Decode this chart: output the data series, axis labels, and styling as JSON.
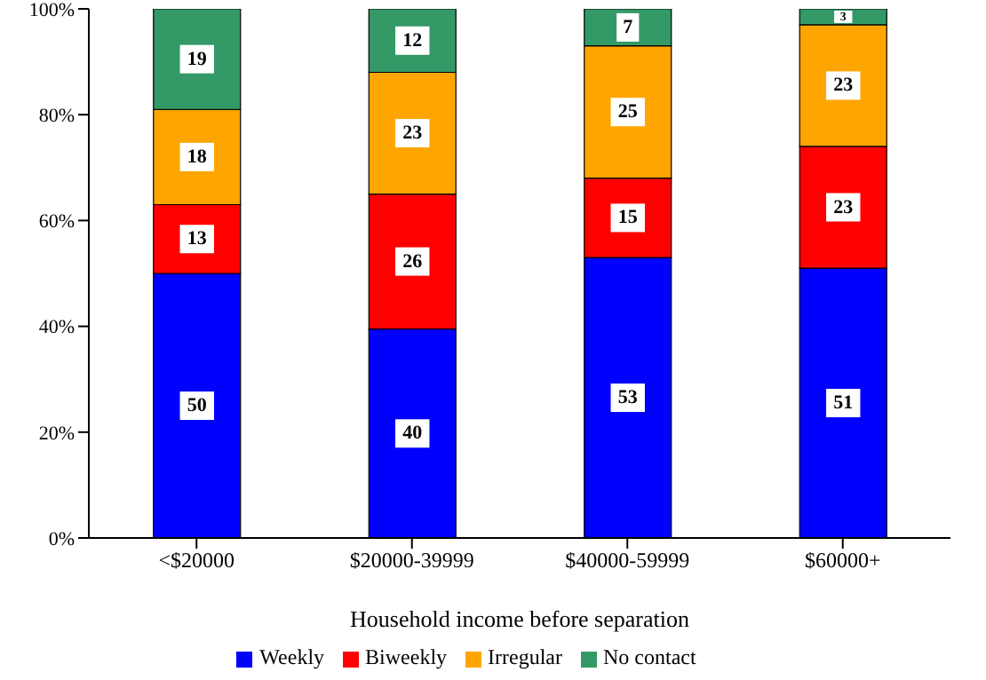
{
  "chart_data": {
    "type": "bar",
    "stacked": true,
    "xlabel": "Household income before separation",
    "categories": [
      "<$20000",
      "$20000-39999",
      "$40000-59999",
      "$60000+"
    ],
    "series": [
      {
        "name": "Weekly",
        "color": "#0000ff",
        "values": [
          50,
          39.5,
          53,
          51
        ],
        "value_labels": [
          "50",
          "40",
          "53",
          "51"
        ]
      },
      {
        "name": "Biweekly",
        "color": "#ff0000",
        "values": [
          13,
          25.5,
          15,
          23
        ],
        "value_labels": [
          "13",
          "26",
          "15",
          "23"
        ]
      },
      {
        "name": "Irregular",
        "color": "#ffa500",
        "values": [
          18,
          23,
          25,
          23
        ],
        "value_labels": [
          "18",
          "23",
          "25",
          "23"
        ]
      },
      {
        "name": "No contact",
        "color": "#339966",
        "values": [
          19,
          12,
          7,
          3
        ],
        "value_labels": [
          "19",
          "12",
          "7",
          "3"
        ]
      }
    ],
    "ylim": [
      0,
      100
    ],
    "yticks": [
      {
        "value": 0,
        "label": "0%"
      },
      {
        "value": 20,
        "label": "20%"
      },
      {
        "value": 40,
        "label": "40%"
      },
      {
        "value": 60,
        "label": "60%"
      },
      {
        "value": 80,
        "label": "80%"
      },
      {
        "value": 100,
        "label": "100%"
      }
    ],
    "grid": false,
    "legend": "bottom"
  }
}
